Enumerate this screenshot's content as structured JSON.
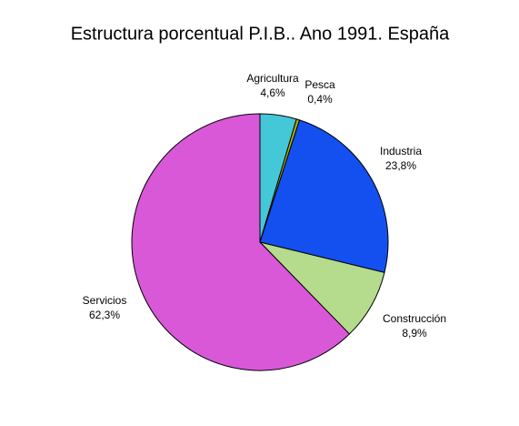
{
  "chart_data": {
    "type": "pie",
    "title": "Estructura porcentual P.I.B.. Ano 1991. España",
    "categories": [
      "Agricultura",
      "Pesca",
      "Industria",
      "Construcción",
      "Servicios"
    ],
    "values": [
      4.6,
      0.4,
      23.8,
      8.9,
      62.3
    ],
    "value_labels": [
      "4,6%",
      "0,4%",
      "23,8%",
      "8,9%",
      "62,3%"
    ],
    "colors": [
      "#44c8d8",
      "#a8a800",
      "#1450f0",
      "#b4dc8c",
      "#d858d8"
    ]
  }
}
